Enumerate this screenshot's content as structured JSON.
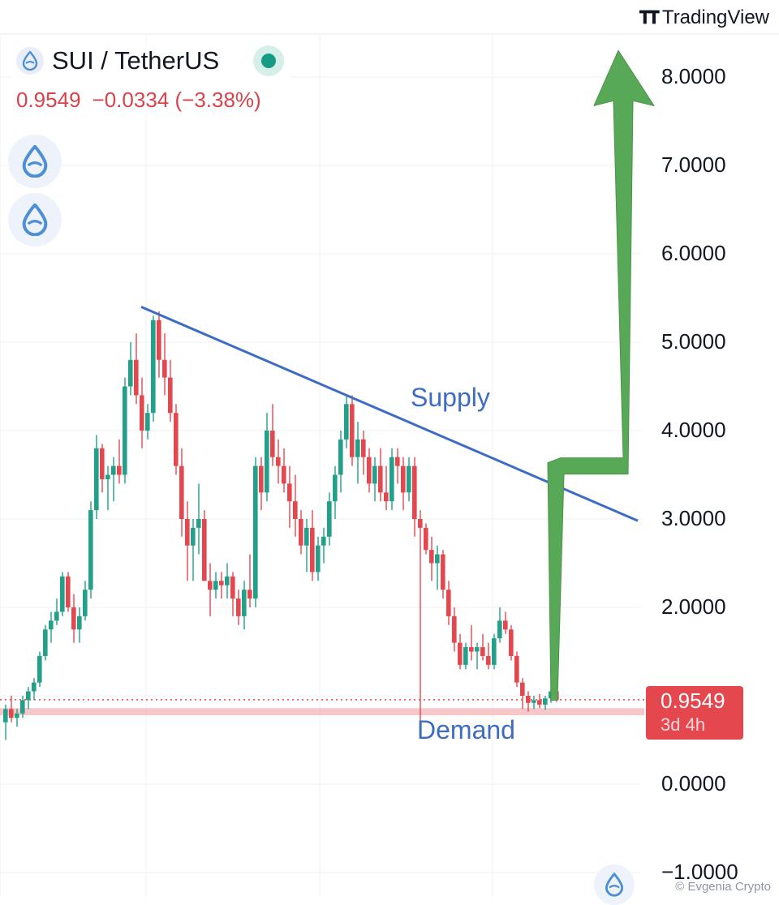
{
  "brand": {
    "name": "TradingView",
    "logo_icon": "tv-logo-icon"
  },
  "legend": {
    "symbol": "SUI / TetherUS",
    "last": "0.9549",
    "change": "−0.0334",
    "change_pct": "(−3.38%)",
    "status_color": "#159b86"
  },
  "price_tag": {
    "price": "0.9549",
    "countdown": "3d 4h"
  },
  "watermark": "© Evgenia Crypto",
  "colors": {
    "up": "#22a08a",
    "down": "#e5474f",
    "trendline": "#3e6cc4",
    "arrow": "#58a957",
    "demand": "#f5b8bc"
  },
  "chart_data": {
    "type": "candlestick",
    "y_ticks": [
      "8.0000",
      "7.0000",
      "6.0000",
      "5.0000",
      "4.0000",
      "3.0000",
      "2.0000",
      "0.0000",
      "−1.0000"
    ],
    "ylim": [
      -1.0,
      8.6
    ],
    "last_price": 0.9549,
    "annotations": {
      "supply": "Supply",
      "demand": "Demand"
    },
    "supply_line": {
      "from": [
        0,
        5.4
      ],
      "to": [
        115,
        2.98
      ]
    },
    "demand_zone": [
      0.78,
      0.86
    ],
    "projection_arrow": [
      [
        97,
        0.95
      ],
      [
        98,
        3.6
      ],
      [
        107,
        3.6
      ],
      [
        108,
        8.3
      ]
    ],
    "candles": [
      [
        0.7,
        0.9,
        0.5,
        0.85
      ],
      [
        0.85,
        1.0,
        0.7,
        0.75
      ],
      [
        0.75,
        0.85,
        0.65,
        0.8
      ],
      [
        0.8,
        1.0,
        0.75,
        0.95
      ],
      [
        0.95,
        1.1,
        0.85,
        1.05
      ],
      [
        1.05,
        1.2,
        0.95,
        1.15
      ],
      [
        1.15,
        1.5,
        1.1,
        1.45
      ],
      [
        1.45,
        1.8,
        1.4,
        1.75
      ],
      [
        1.75,
        1.95,
        1.6,
        1.85
      ],
      [
        1.85,
        2.1,
        1.8,
        1.95
      ],
      [
        1.95,
        2.4,
        1.9,
        2.35
      ],
      [
        2.35,
        2.4,
        1.95,
        2.0
      ],
      [
        2.0,
        2.15,
        1.6,
        1.75
      ],
      [
        1.75,
        2.0,
        1.6,
        1.9
      ],
      [
        1.9,
        2.3,
        1.85,
        2.2
      ],
      [
        2.2,
        3.2,
        2.1,
        3.1
      ],
      [
        3.1,
        3.95,
        3.0,
        3.8
      ],
      [
        3.8,
        3.85,
        3.3,
        3.45
      ],
      [
        3.45,
        3.6,
        3.1,
        3.5
      ],
      [
        3.5,
        3.7,
        3.2,
        3.6
      ],
      [
        3.6,
        3.9,
        3.4,
        3.5
      ],
      [
        3.5,
        4.6,
        3.4,
        4.5
      ],
      [
        4.5,
        5.0,
        4.4,
        4.8
      ],
      [
        4.8,
        5.1,
        4.3,
        4.4
      ],
      [
        4.4,
        4.6,
        3.8,
        4.0
      ],
      [
        4.0,
        4.3,
        3.9,
        4.2
      ],
      [
        4.2,
        5.3,
        4.1,
        5.25
      ],
      [
        5.25,
        5.35,
        4.6,
        4.8
      ],
      [
        4.8,
        5.1,
        4.4,
        4.6
      ],
      [
        4.6,
        4.8,
        4.1,
        4.2
      ],
      [
        4.2,
        4.3,
        3.5,
        3.6
      ],
      [
        3.6,
        3.8,
        2.8,
        3.0
      ],
      [
        3.0,
        3.2,
        2.3,
        2.7
      ],
      [
        2.7,
        3.0,
        2.3,
        2.9
      ],
      [
        2.9,
        3.4,
        2.6,
        3.0
      ],
      [
        3.0,
        3.1,
        2.3,
        2.3
      ],
      [
        2.3,
        2.5,
        1.9,
        2.2
      ],
      [
        2.2,
        2.4,
        2.1,
        2.3
      ],
      [
        2.3,
        2.4,
        2.1,
        2.25
      ],
      [
        2.25,
        2.5,
        2.1,
        2.35
      ],
      [
        2.35,
        2.4,
        1.9,
        2.1
      ],
      [
        2.1,
        2.2,
        1.8,
        1.9
      ],
      [
        1.9,
        2.3,
        1.75,
        2.2
      ],
      [
        2.2,
        2.6,
        2.0,
        2.1
      ],
      [
        2.1,
        3.7,
        2.0,
        3.6
      ],
      [
        3.6,
        3.7,
        3.1,
        3.3
      ],
      [
        3.3,
        4.2,
        3.2,
        4.0
      ],
      [
        4.0,
        4.3,
        3.6,
        3.7
      ],
      [
        3.7,
        3.9,
        3.4,
        3.6
      ],
      [
        3.6,
        3.8,
        3.3,
        3.4
      ],
      [
        3.4,
        3.6,
        2.9,
        3.2
      ],
      [
        3.2,
        3.5,
        2.8,
        3.0
      ],
      [
        3.0,
        3.1,
        2.6,
        2.7
      ],
      [
        2.7,
        3.0,
        2.4,
        2.9
      ],
      [
        2.9,
        3.1,
        2.3,
        2.4
      ],
      [
        2.4,
        2.8,
        2.3,
        2.7
      ],
      [
        2.7,
        2.9,
        2.5,
        2.8
      ],
      [
        2.8,
        3.3,
        2.7,
        3.2
      ],
      [
        3.2,
        3.6,
        3.0,
        3.5
      ],
      [
        3.5,
        4.0,
        3.3,
        3.9
      ],
      [
        3.9,
        4.4,
        3.8,
        4.3
      ],
      [
        4.3,
        4.4,
        3.6,
        3.7
      ],
      [
        3.7,
        4.1,
        3.4,
        3.9
      ],
      [
        3.9,
        4.0,
        3.5,
        3.7
      ],
      [
        3.7,
        3.8,
        3.3,
        3.4
      ],
      [
        3.4,
        3.7,
        3.2,
        3.6
      ],
      [
        3.6,
        3.8,
        3.2,
        3.3
      ],
      [
        3.3,
        3.6,
        3.1,
        3.2
      ],
      [
        3.2,
        3.8,
        3.1,
        3.7
      ],
      [
        3.7,
        3.8,
        3.4,
        3.6
      ],
      [
        3.6,
        3.7,
        3.1,
        3.3
      ],
      [
        3.3,
        3.7,
        3.2,
        3.6
      ],
      [
        3.6,
        3.7,
        2.8,
        3.0
      ],
      [
        3.0,
        3.1,
        0.6,
        2.9
      ],
      [
        2.9,
        2.95,
        2.6,
        2.65
      ],
      [
        2.65,
        2.8,
        2.3,
        2.5
      ],
      [
        2.5,
        2.7,
        2.2,
        2.6
      ],
      [
        2.6,
        2.65,
        2.1,
        2.2
      ],
      [
        2.2,
        2.3,
        1.8,
        1.9
      ],
      [
        1.9,
        2.0,
        1.5,
        1.6
      ],
      [
        1.6,
        1.7,
        1.3,
        1.35
      ],
      [
        1.35,
        1.6,
        1.3,
        1.55
      ],
      [
        1.55,
        1.8,
        1.4,
        1.5
      ],
      [
        1.5,
        1.6,
        1.3,
        1.55
      ],
      [
        1.55,
        1.7,
        1.4,
        1.45
      ],
      [
        1.45,
        1.6,
        1.3,
        1.35
      ],
      [
        1.35,
        1.7,
        1.3,
        1.65
      ],
      [
        1.65,
        2.0,
        1.6,
        1.85
      ],
      [
        1.85,
        1.95,
        1.7,
        1.75
      ],
      [
        1.75,
        1.8,
        1.4,
        1.45
      ],
      [
        1.45,
        1.5,
        1.1,
        1.15
      ],
      [
        1.15,
        1.2,
        0.85,
        1.0
      ],
      [
        1.0,
        1.05,
        0.82,
        0.92
      ],
      [
        0.92,
        1.0,
        0.85,
        0.95
      ],
      [
        0.95,
        1.02,
        0.86,
        0.9
      ],
      [
        0.9,
        1.0,
        0.84,
        0.97
      ],
      [
        0.97,
        1.08,
        0.92,
        1.05
      ],
      [
        1.05,
        1.1,
        0.93,
        0.955
      ]
    ]
  }
}
